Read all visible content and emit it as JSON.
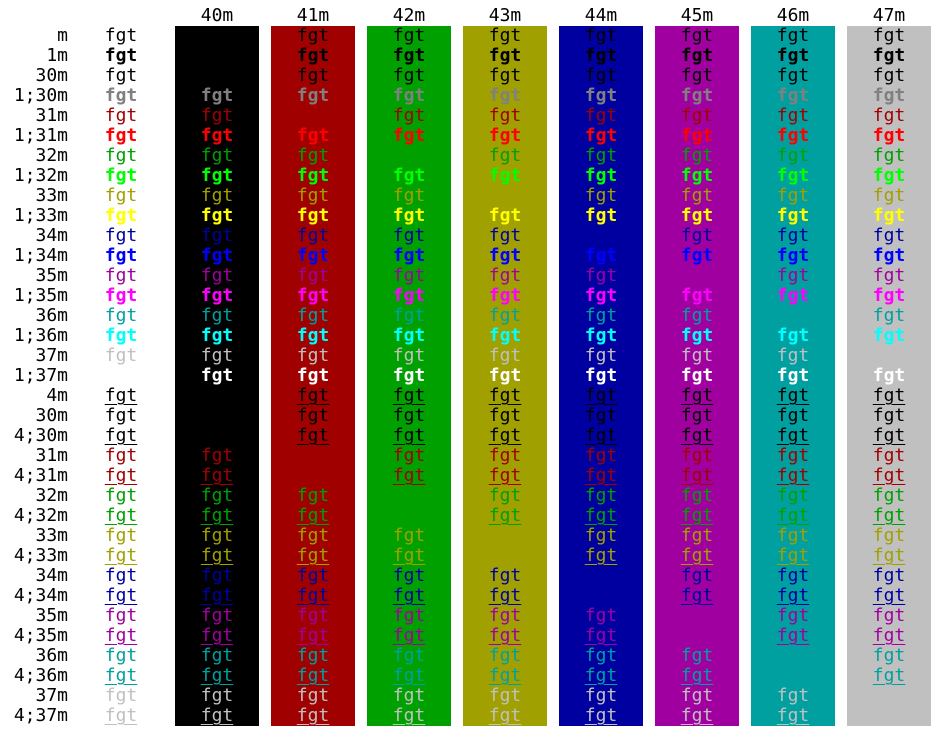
{
  "sample_text": "fgt",
  "columns": [
    {
      "label": "",
      "bg": null
    },
    {
      "label": "40m",
      "bg": "#000000"
    },
    {
      "label": "41m",
      "bg": "#a00000"
    },
    {
      "label": "42m",
      "bg": "#00a000"
    },
    {
      "label": "43m",
      "bg": "#a0a000"
    },
    {
      "label": "44m",
      "bg": "#0000a0"
    },
    {
      "label": "45m",
      "bg": "#a000a0"
    },
    {
      "label": "46m",
      "bg": "#00a0a0"
    },
    {
      "label": "47m",
      "bg": "#c0c0c0"
    }
  ],
  "rows": [
    {
      "label": "m",
      "fg": "#000000",
      "bold": false,
      "underline": false
    },
    {
      "label": "1m",
      "fg": "#000000",
      "bold": true,
      "underline": false
    },
    {
      "label": "30m",
      "fg": "#000000",
      "bold": false,
      "underline": false
    },
    {
      "label": "1;30m",
      "fg": "#808080",
      "bold": true,
      "underline": false
    },
    {
      "label": "31m",
      "fg": "#a00000",
      "bold": false,
      "underline": false
    },
    {
      "label": "1;31m",
      "fg": "#ff0000",
      "bold": true,
      "underline": false
    },
    {
      "label": "32m",
      "fg": "#00a000",
      "bold": false,
      "underline": false
    },
    {
      "label": "1;32m",
      "fg": "#00ff00",
      "bold": true,
      "underline": false
    },
    {
      "label": "33m",
      "fg": "#a0a000",
      "bold": false,
      "underline": false
    },
    {
      "label": "1;33m",
      "fg": "#ffff00",
      "bold": true,
      "underline": false
    },
    {
      "label": "34m",
      "fg": "#0000a0",
      "bold": false,
      "underline": false
    },
    {
      "label": "1;34m",
      "fg": "#0000ff",
      "bold": true,
      "underline": false
    },
    {
      "label": "35m",
      "fg": "#a000a0",
      "bold": false,
      "underline": false
    },
    {
      "label": "1;35m",
      "fg": "#ff00ff",
      "bold": true,
      "underline": false
    },
    {
      "label": "36m",
      "fg": "#00a0a0",
      "bold": false,
      "underline": false
    },
    {
      "label": "1;36m",
      "fg": "#00ffff",
      "bold": true,
      "underline": false
    },
    {
      "label": "37m",
      "fg": "#c0c0c0",
      "bold": false,
      "underline": false
    },
    {
      "label": "1;37m",
      "fg": "#ffffff",
      "bold": true,
      "underline": false
    },
    {
      "label": "4m",
      "fg": "#000000",
      "bold": false,
      "underline": true
    },
    {
      "label": "30m",
      "fg": "#000000",
      "bold": false,
      "underline": false
    },
    {
      "label": "4;30m",
      "fg": "#000000",
      "bold": false,
      "underline": true
    },
    {
      "label": "31m",
      "fg": "#a00000",
      "bold": false,
      "underline": false
    },
    {
      "label": "4;31m",
      "fg": "#a00000",
      "bold": false,
      "underline": true
    },
    {
      "label": "32m",
      "fg": "#00a000",
      "bold": false,
      "underline": false
    },
    {
      "label": "4;32m",
      "fg": "#00a000",
      "bold": false,
      "underline": true
    },
    {
      "label": "33m",
      "fg": "#a0a000",
      "bold": false,
      "underline": false
    },
    {
      "label": "4;33m",
      "fg": "#a0a000",
      "bold": false,
      "underline": true
    },
    {
      "label": "34m",
      "fg": "#0000a0",
      "bold": false,
      "underline": false
    },
    {
      "label": "4;34m",
      "fg": "#0000a0",
      "bold": false,
      "underline": true
    },
    {
      "label": "35m",
      "fg": "#a000a0",
      "bold": false,
      "underline": false
    },
    {
      "label": "4;35m",
      "fg": "#a000a0",
      "bold": false,
      "underline": true
    },
    {
      "label": "36m",
      "fg": "#00a0a0",
      "bold": false,
      "underline": false
    },
    {
      "label": "4;36m",
      "fg": "#00a0a0",
      "bold": false,
      "underline": true
    },
    {
      "label": "37m",
      "fg": "#c0c0c0",
      "bold": false,
      "underline": false
    },
    {
      "label": "4;37m",
      "fg": "#c0c0c0",
      "bold": false,
      "underline": true
    }
  ]
}
